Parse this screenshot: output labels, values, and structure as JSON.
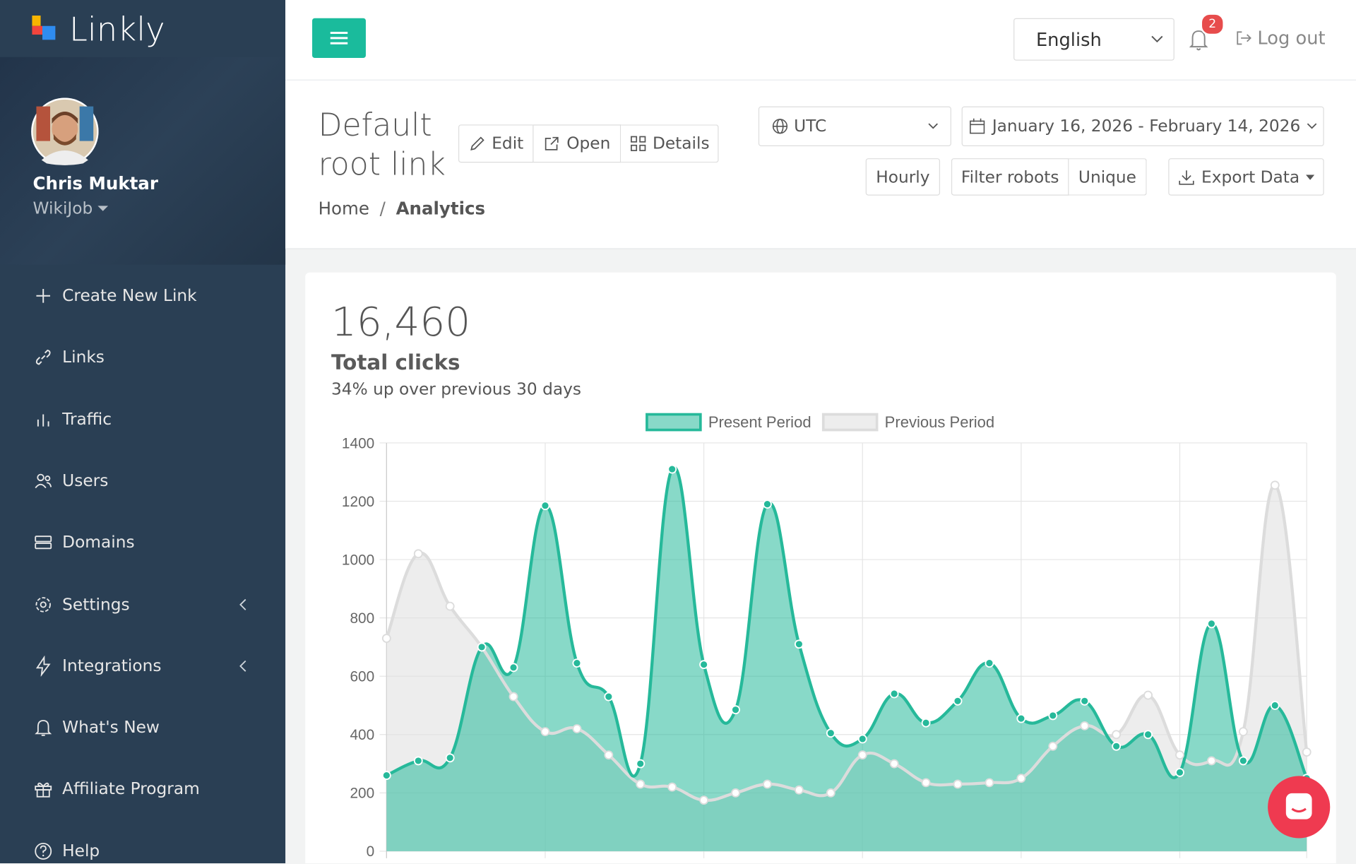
{
  "sidebar": {
    "brand": "Linkly",
    "user": {
      "name": "Chris Muktar",
      "org": "WikiJob"
    },
    "menu": [
      "Create New Link",
      "Links",
      "Traffic",
      "Users",
      "Domains",
      "Settings",
      "Integrations",
      "What's New",
      "Affiliate Program",
      "Help"
    ]
  },
  "topbar": {
    "language": "English",
    "notifications": 2,
    "logout": "Log out"
  },
  "page": {
    "title": "Default root link",
    "actions": [
      "Edit",
      "Open",
      "Details"
    ],
    "timezone": "UTC",
    "date_range": "January 16, 2026 - February 14, 2026",
    "filters": [
      "Hourly",
      "Filter robots",
      "Unique"
    ],
    "export": "Export Data",
    "breadcrumb": [
      "Home",
      "Analytics"
    ]
  },
  "stats": {
    "total": "16,460",
    "label": "Total clicks",
    "change": "34% up over previous 30 days"
  },
  "chart_data": {
    "type": "line",
    "series": [
      {
        "name": "Present Period",
        "color": "#26b99a",
        "fill": "rgba(38,185,154,0.55)",
        "values": [
          260,
          310,
          320,
          700,
          630,
          1185,
          645,
          530,
          300,
          1310,
          640,
          485,
          1190,
          710,
          405,
          385,
          540,
          440,
          515,
          645,
          455,
          465,
          515,
          360,
          400,
          270,
          780,
          310,
          500,
          250
        ]
      },
      {
        "name": "Previous Period",
        "color": "#dcdcdc",
        "fill": "rgba(225,225,225,0.6)",
        "values": [
          730,
          1020,
          840,
          700,
          530,
          410,
          420,
          330,
          230,
          220,
          175,
          200,
          230,
          210,
          200,
          330,
          300,
          235,
          230,
          235,
          250,
          360,
          430,
          400,
          535,
          330,
          310,
          410,
          1255,
          340
        ]
      }
    ],
    "ylim": [
      0,
      1400
    ],
    "yticks": [
      0,
      200,
      400,
      600,
      800,
      1000,
      1200,
      1400
    ],
    "grid": true,
    "legend": "top"
  }
}
